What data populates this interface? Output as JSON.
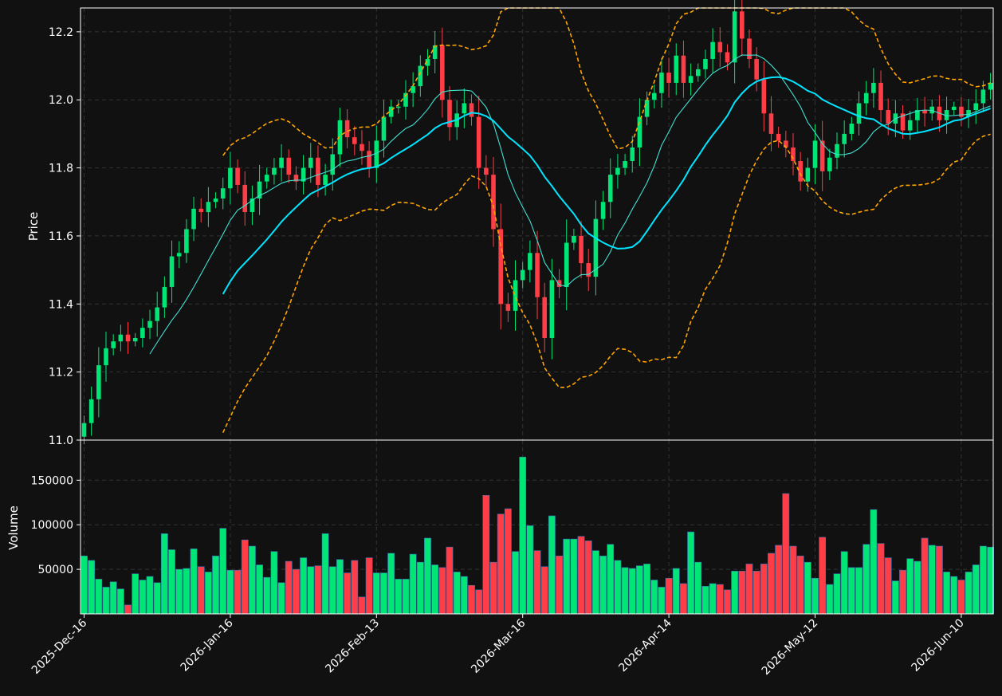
{
  "chart_data": {
    "type": "candlestick",
    "theme": {
      "background": "#111111",
      "grid": "#333333",
      "up_color": "#00e676",
      "down_color": "#ff3d47",
      "ma_fast_color": "#40e0d0",
      "ma_slow_color": "#00e5ff",
      "bollinger_color": "#ffa500",
      "axis_color": "#ffffff"
    },
    "price_panel": {
      "ylabel": "Price",
      "ylim": [
        11.0,
        12.27
      ],
      "yticks": [
        "11.0",
        "11.2",
        "11.4",
        "11.6",
        "11.8",
        "12.0",
        "12.2"
      ],
      "grid": true
    },
    "volume_panel": {
      "ylabel": "Volume",
      "ylim": [
        0,
        195000
      ],
      "yticks": [
        "50000",
        "100000",
        "150000"
      ],
      "grid": true
    },
    "x_ticks": [
      {
        "label": "2025-Dec-16",
        "index": 0
      },
      {
        "label": "2026-Jan-16",
        "index": 20
      },
      {
        "label": "2026-Feb-13",
        "index": 40
      },
      {
        "label": "2026-Mar-16",
        "index": 60
      },
      {
        "label": "2026-Apr-14",
        "index": 80
      },
      {
        "label": "2026-May-12",
        "index": 100
      },
      {
        "label": "2026-Jun-10",
        "index": 120
      }
    ],
    "n_bars": 125,
    "close": [
      11.05,
      11.12,
      11.22,
      11.27,
      11.29,
      11.31,
      11.29,
      11.3,
      11.33,
      11.35,
      11.39,
      11.45,
      11.54,
      11.55,
      11.62,
      11.68,
      11.67,
      11.7,
      11.71,
      11.74,
      11.8,
      11.75,
      11.67,
      11.71,
      11.76,
      11.78,
      11.8,
      11.83,
      11.78,
      11.76,
      11.8,
      11.83,
      11.75,
      11.78,
      11.84,
      11.94,
      11.89,
      11.87,
      11.85,
      11.8,
      11.88,
      11.95,
      11.98,
      11.98,
      12.02,
      12.04,
      12.1,
      12.12,
      12.16,
      12.0,
      11.92,
      11.96,
      11.99,
      11.95,
      11.8,
      11.78,
      11.62,
      11.4,
      11.38,
      11.47,
      11.5,
      11.55,
      11.42,
      11.3,
      11.47,
      11.45,
      11.58,
      11.6,
      11.52,
      11.48,
      11.65,
      11.7,
      11.78,
      11.8,
      11.82,
      11.86,
      11.95,
      12.0,
      12.02,
      12.08,
      12.05,
      12.13,
      12.05,
      12.07,
      12.09,
      12.12,
      12.17,
      12.14,
      12.11,
      12.26,
      12.18,
      12.12,
      12.06,
      11.96,
      11.9,
      11.88,
      11.86,
      11.82,
      11.76,
      11.8,
      11.88,
      11.79,
      11.83,
      11.87,
      11.9,
      11.93,
      11.99,
      12.02,
      12.05,
      11.97,
      11.93,
      11.96,
      11.91,
      11.94,
      11.97,
      11.96,
      11.98,
      11.94,
      11.97,
      11.98,
      11.95,
      11.97,
      11.99,
      12.03,
      12.05
    ],
    "volume": [
      65000,
      60000,
      39000,
      30000,
      36000,
      28000,
      10000,
      45000,
      38000,
      42000,
      35000,
      90000,
      72000,
      50000,
      51000,
      73000,
      53000,
      47000,
      65000,
      96000,
      49000,
      49000,
      83000,
      76000,
      55000,
      41000,
      70000,
      35000,
      59000,
      50000,
      63000,
      53000,
      54000,
      90000,
      53000,
      61000,
      46000,
      60000,
      19000,
      63000,
      46000,
      46000,
      68000,
      39000,
      39000,
      67000,
      58000,
      85000,
      55000,
      52000,
      75000,
      47000,
      42000,
      32000,
      27000,
      133000,
      58000,
      112000,
      118000,
      70000,
      176000,
      99000,
      71000,
      53000,
      110000,
      65000,
      84000,
      84000,
      87000,
      82000,
      71000,
      65000,
      78000,
      60000,
      52000,
      51000,
      54000,
      56000,
      38000,
      30000,
      40000,
      51000,
      34000,
      92000,
      58000,
      31000,
      34000,
      33000,
      27000,
      48000,
      48000,
      56000,
      48000,
      56000,
      68000,
      77000,
      135000,
      76000,
      65000,
      58000,
      40000,
      86000,
      33000,
      45000,
      70000,
      52000,
      52000,
      78000,
      117000,
      79000,
      63000,
      37000,
      49000,
      62000,
      59000,
      85000,
      77000,
      76000,
      47000,
      42000,
      38000,
      47000,
      55000,
      76000,
      75000
    ],
    "series": [
      {
        "key": "bb_upper"
      },
      {
        "key": "ma_fast"
      },
      {
        "key": "ma_slow"
      },
      {
        "key": "bb_lower"
      }
    ]
  }
}
